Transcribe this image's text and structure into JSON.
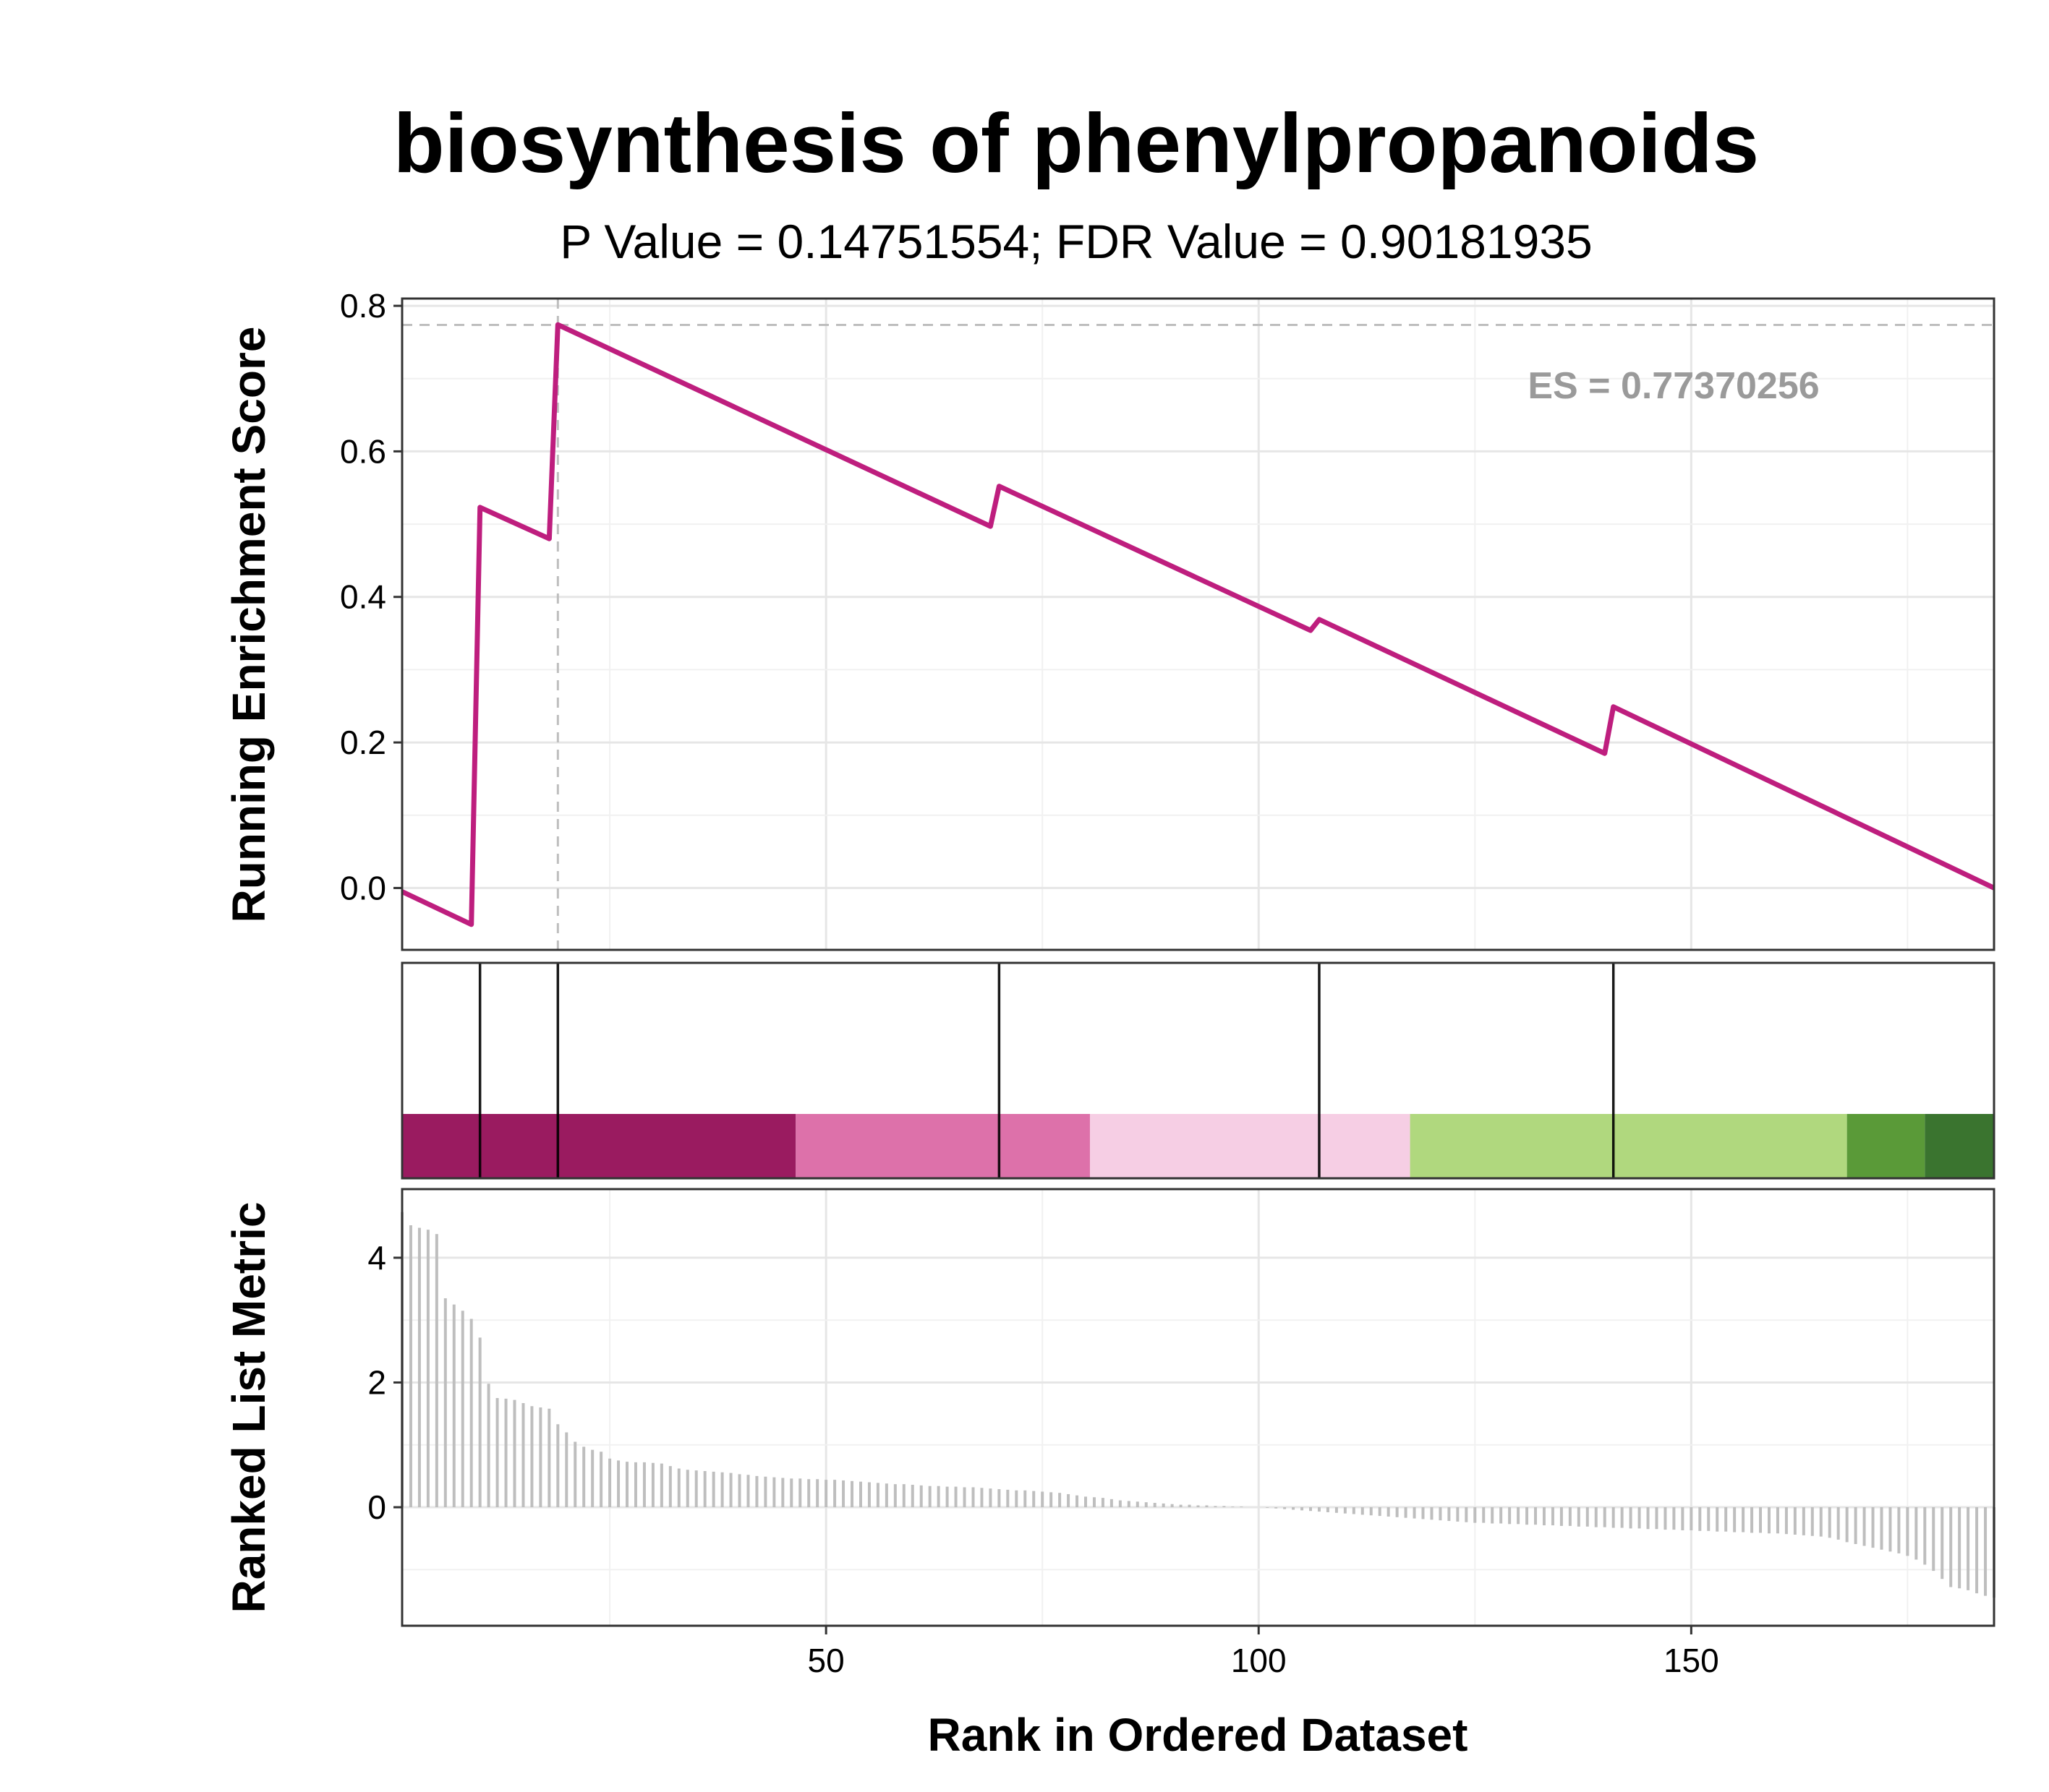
{
  "chart_data": {
    "type": "line",
    "title": "biosynthesis of phenylpropanoids",
    "subtitle": "P Value = 0.14751554; FDR Value = 0.90181935",
    "xlabel": "Rank in Ordered Dataset",
    "x_ticks": [
      50,
      100,
      150
    ],
    "x_range": [
      1,
      185
    ],
    "grid": true,
    "colors": {
      "curve": "#BE1E7E",
      "hits": "#000000",
      "metric": "#BEBEBE",
      "es_label": "#9A9A9A",
      "es_line": "#BEBEBE"
    },
    "panels": {
      "running_es": {
        "ylabel": "Running Enrichment Score",
        "ylim": [
          -0.085,
          0.81
        ],
        "y_ticks": [
          0.0,
          0.2,
          0.4,
          0.6,
          0.8
        ],
        "y_tick_labels": [
          "0.0",
          "0.2",
          "0.4",
          "0.6",
          "0.8"
        ],
        "es_label": "ES = 0.77370256",
        "es": 0.7737,
        "peak_rank": 19,
        "points": [
          [
            1,
            -0.005
          ],
          [
            9,
            -0.05
          ],
          [
            10,
            0.523
          ],
          [
            18,
            0.48
          ],
          [
            19,
            0.774
          ],
          [
            69,
            0.497
          ],
          [
            70,
            0.552
          ],
          [
            106,
            0.354
          ],
          [
            107,
            0.369
          ],
          [
            140,
            0.185
          ],
          [
            141,
            0.249
          ],
          [
            185,
            0.0
          ]
        ]
      },
      "hits": {
        "ranks": [
          10,
          19,
          70,
          107,
          141
        ],
        "color_bands": [
          {
            "from": 1,
            "to": 46.5,
            "color": "#9A1B60"
          },
          {
            "from": 46.5,
            "to": 80.5,
            "color": "#DD71AA"
          },
          {
            "from": 80.5,
            "to": 117.5,
            "color": "#F6CEE4"
          },
          {
            "from": 117.5,
            "to": 168,
            "color": "#B0D87E"
          },
          {
            "from": 168,
            "to": 177,
            "color": "#5A9A38"
          },
          {
            "from": 177,
            "to": 185,
            "color": "#3A742F"
          }
        ]
      },
      "ranked_metric": {
        "ylabel": "Ranked List Metric",
        "ylim": [
          -1.9,
          5.1
        ],
        "y_ticks": [
          0,
          2,
          4
        ],
        "y_tick_labels": [
          "0",
          "2",
          "4"
        ],
        "values": [
          4.73,
          4.52,
          4.48,
          4.45,
          4.38,
          3.35,
          3.25,
          3.15,
          3.02,
          2.72,
          1.98,
          1.75,
          1.74,
          1.72,
          1.67,
          1.62,
          1.6,
          1.58,
          1.33,
          1.2,
          1.05,
          0.97,
          0.92,
          0.89,
          0.78,
          0.75,
          0.73,
          0.72,
          0.72,
          0.71,
          0.7,
          0.66,
          0.62,
          0.6,
          0.59,
          0.58,
          0.57,
          0.56,
          0.55,
          0.53,
          0.52,
          0.5,
          0.49,
          0.48,
          0.47,
          0.46,
          0.46,
          0.45,
          0.45,
          0.44,
          0.44,
          0.43,
          0.42,
          0.41,
          0.4,
          0.39,
          0.38,
          0.37,
          0.37,
          0.36,
          0.35,
          0.34,
          0.34,
          0.33,
          0.33,
          0.32,
          0.32,
          0.31,
          0.3,
          0.29,
          0.28,
          0.27,
          0.27,
          0.26,
          0.25,
          0.24,
          0.23,
          0.21,
          0.19,
          0.17,
          0.16,
          0.15,
          0.13,
          0.11,
          0.1,
          0.09,
          0.08,
          0.07,
          0.06,
          0.05,
          0.04,
          0.04,
          0.03,
          0.03,
          0.02,
          0.02,
          0.01,
          0.01,
          0.0,
          0.0,
          -0.01,
          -0.02,
          -0.03,
          -0.04,
          -0.05,
          -0.06,
          -0.07,
          -0.08,
          -0.09,
          -0.1,
          -0.11,
          -0.12,
          -0.13,
          -0.14,
          -0.15,
          -0.16,
          -0.17,
          -0.18,
          -0.19,
          -0.2,
          -0.21,
          -0.22,
          -0.23,
          -0.24,
          -0.25,
          -0.25,
          -0.26,
          -0.26,
          -0.27,
          -0.27,
          -0.28,
          -0.28,
          -0.29,
          -0.29,
          -0.3,
          -0.3,
          -0.31,
          -0.31,
          -0.32,
          -0.32,
          -0.33,
          -0.33,
          -0.34,
          -0.34,
          -0.35,
          -0.35,
          -0.36,
          -0.36,
          -0.37,
          -0.37,
          -0.38,
          -0.38,
          -0.39,
          -0.39,
          -0.4,
          -0.4,
          -0.41,
          -0.41,
          -0.42,
          -0.42,
          -0.43,
          -0.44,
          -0.45,
          -0.46,
          -0.47,
          -0.49,
          -0.52,
          -0.56,
          -0.59,
          -0.62,
          -0.65,
          -0.68,
          -0.71,
          -0.74,
          -0.78,
          -0.84,
          -0.92,
          -1.02,
          -1.15,
          -1.28,
          -1.3,
          -1.33,
          -1.38,
          -1.42,
          -1.45
        ]
      }
    }
  }
}
